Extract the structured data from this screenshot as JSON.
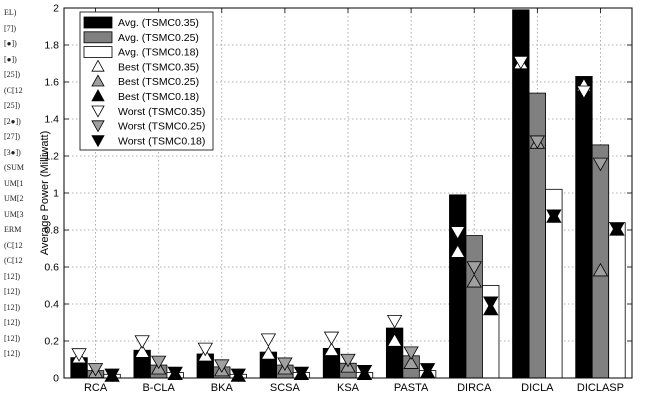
{
  "margin_notes": [
    "EL)",
    "[7])",
    "[●])",
    "[●])",
    "[25])",
    "(C[12",
    "[25])",
    "[2●])",
    "[27])",
    "[3●])",
    "(SUM",
    "UM[1",
    "UM[2",
    "UM[3",
    "ERM",
    "(C[12",
    "(C[12",
    "[12])",
    "[12])",
    "[12])",
    "[12])",
    "[12])",
    "[12])"
  ],
  "chart_data": {
    "type": "bar",
    "title": "",
    "xlabel": "",
    "ylabel": "Average Power (Milliwatt)",
    "ylim": [
      0,
      2
    ],
    "yticks": [
      "0",
      "0.2",
      "0.4",
      "0.6",
      "0.8",
      "1",
      "1.2",
      "1.4",
      "1.6",
      "1.8",
      "2"
    ],
    "grid": true,
    "legend_position": "top-left",
    "categories": [
      "RCA",
      "B-CLA",
      "BKA",
      "SCSA",
      "KSA",
      "PASTA",
      "DIRCA",
      "DICLA",
      "DICLASP"
    ],
    "series": [
      {
        "name": "Avg. (TSMC0.35)",
        "values": [
          0.11,
          0.15,
          0.13,
          0.14,
          0.16,
          0.27,
          0.99,
          1.99,
          1.63
        ],
        "color": "#000000"
      },
      {
        "name": "Avg. (TSMC0.25)",
        "values": [
          0.04,
          0.07,
          0.06,
          0.07,
          0.08,
          0.12,
          0.77,
          1.54,
          1.26
        ],
        "color": "#808080"
      },
      {
        "name": "Avg. (TSMC0.18)",
        "values": [
          0.02,
          0.03,
          0.02,
          0.03,
          0.03,
          0.04,
          0.5,
          1.02,
          0.84
        ],
        "color": "#ffffff"
      }
    ],
    "markers": [
      {
        "name": "Best (TSMC0.35)",
        "shape": "up",
        "fill": "#ffffff",
        "values": [
          0.11,
          0.14,
          0.12,
          0.13,
          0.15,
          0.2,
          0.68,
          1.7,
          1.58
        ]
      },
      {
        "name": "Best (TSMC0.25)",
        "shape": "up",
        "fill": "#a0a0a0",
        "values": [
          0.03,
          0.05,
          0.04,
          0.05,
          0.06,
          0.08,
          0.52,
          1.27,
          0.58
        ]
      },
      {
        "name": "Best (TSMC0.18)",
        "shape": "up",
        "fill": "#000000",
        "values": [
          0.01,
          0.02,
          0.01,
          0.02,
          0.02,
          0.03,
          0.37,
          0.87,
          0.8
        ]
      },
      {
        "name": "Worst (TSMC0.35)",
        "shape": "down",
        "fill": "#ffffff",
        "values": [
          0.13,
          0.2,
          0.16,
          0.21,
          0.22,
          0.31,
          0.79,
          1.71,
          1.55
        ]
      },
      {
        "name": "Worst (TSMC0.25)",
        "shape": "down",
        "fill": "#a0a0a0",
        "values": [
          0.05,
          0.09,
          0.07,
          0.08,
          0.1,
          0.14,
          0.6,
          1.28,
          1.16
        ]
      },
      {
        "name": "Worst (TSMC0.18)",
        "shape": "down",
        "fill": "#000000",
        "values": [
          0.02,
          0.03,
          0.02,
          0.03,
          0.04,
          0.05,
          0.41,
          0.88,
          0.81
        ]
      }
    ]
  }
}
